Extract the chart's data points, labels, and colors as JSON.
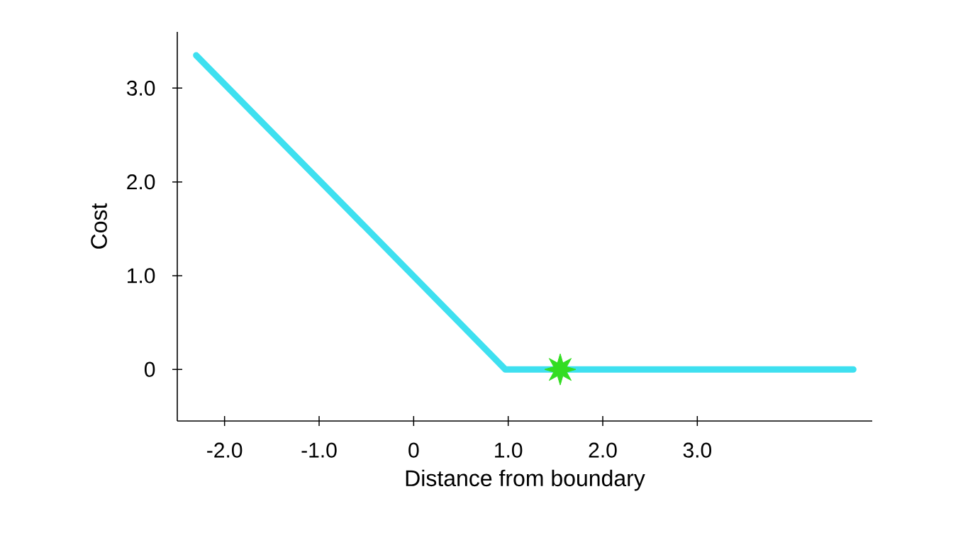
{
  "chart_data": {
    "type": "line",
    "xlabel": "Distance from boundary",
    "ylabel": "Cost",
    "xlim": [
      -2.5,
      4.85
    ],
    "ylim": [
      -0.55,
      3.6
    ],
    "xticks": [
      {
        "value": -2,
        "label": "-2.0"
      },
      {
        "value": -1,
        "label": "-1.0"
      },
      0,
      {
        "value": 1,
        "label": "1.0"
      },
      {
        "value": 2,
        "label": "2.0"
      },
      {
        "value": 3,
        "label": "3.0"
      }
    ],
    "yticks": [
      0,
      {
        "value": 1,
        "label": "1.0"
      },
      {
        "value": 2,
        "label": "2.0"
      },
      {
        "value": 3,
        "label": "3.0"
      }
    ],
    "grid": false,
    "series": [
      {
        "color": "#3ee0f0",
        "marker": "none",
        "line_style": "solid",
        "x": [
          -2.3,
          0.97,
          4.65
        ],
        "values": [
          3.35,
          0,
          0
        ]
      },
      {
        "type": "scatter",
        "color": "#33dd22",
        "marker": "star",
        "x": [
          1.55
        ],
        "values": [
          0
        ]
      }
    ]
  }
}
